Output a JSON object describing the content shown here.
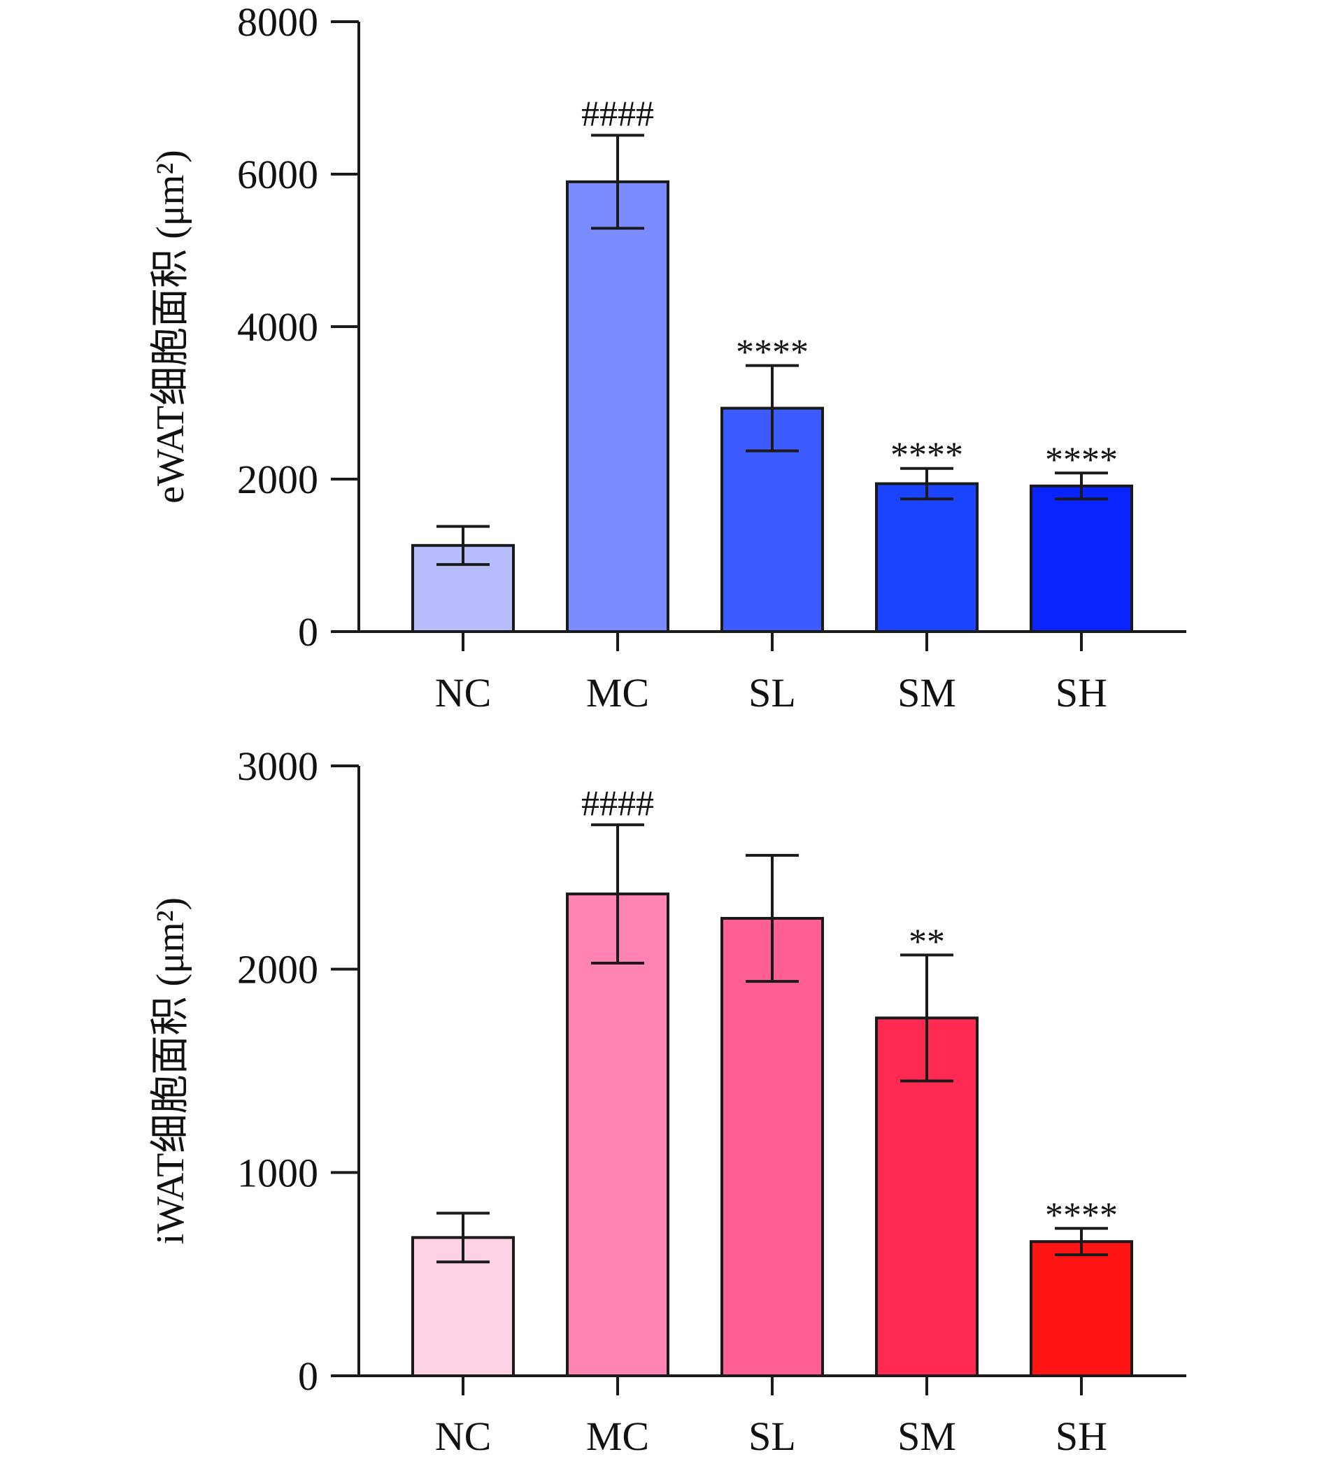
{
  "chart_data": [
    {
      "type": "bar",
      "title": "",
      "xlabel": "",
      "ylabel": "eWAT细胞面积 (μm²)",
      "ylim": [
        0,
        8000
      ],
      "yticks": [
        0,
        2000,
        4000,
        6000,
        8000
      ],
      "categories": [
        "NC",
        "MC",
        "SL",
        "SM",
        "SH"
      ],
      "values": [
        1130,
        5900,
        2930,
        1940,
        1910
      ],
      "errors": [
        250,
        610,
        560,
        200,
        170
      ],
      "annotations": [
        "",
        "####",
        "****",
        "****",
        "****"
      ],
      "colors": [
        "#b6bdfa",
        "#7a8cff",
        "#3d5cff",
        "#1a44ff",
        "#0a24ff"
      ]
    },
    {
      "type": "bar",
      "title": "",
      "xlabel": "",
      "ylabel": "iWAT细胞面积 (μm²)",
      "ylim": [
        0,
        3000
      ],
      "yticks": [
        0,
        1000,
        2000,
        3000
      ],
      "categories": [
        "NC",
        "MC",
        "SL",
        "SM",
        "SH"
      ],
      "values": [
        680,
        2370,
        2250,
        1760,
        660
      ],
      "errors": [
        120,
        340,
        310,
        310,
        65
      ],
      "annotations": [
        "",
        "####",
        "",
        "**",
        "****"
      ],
      "colors": [
        "#fcd2e4",
        "#ff84b2",
        "#ff5f94",
        "#ff2a52",
        "#ff1414"
      ]
    }
  ]
}
